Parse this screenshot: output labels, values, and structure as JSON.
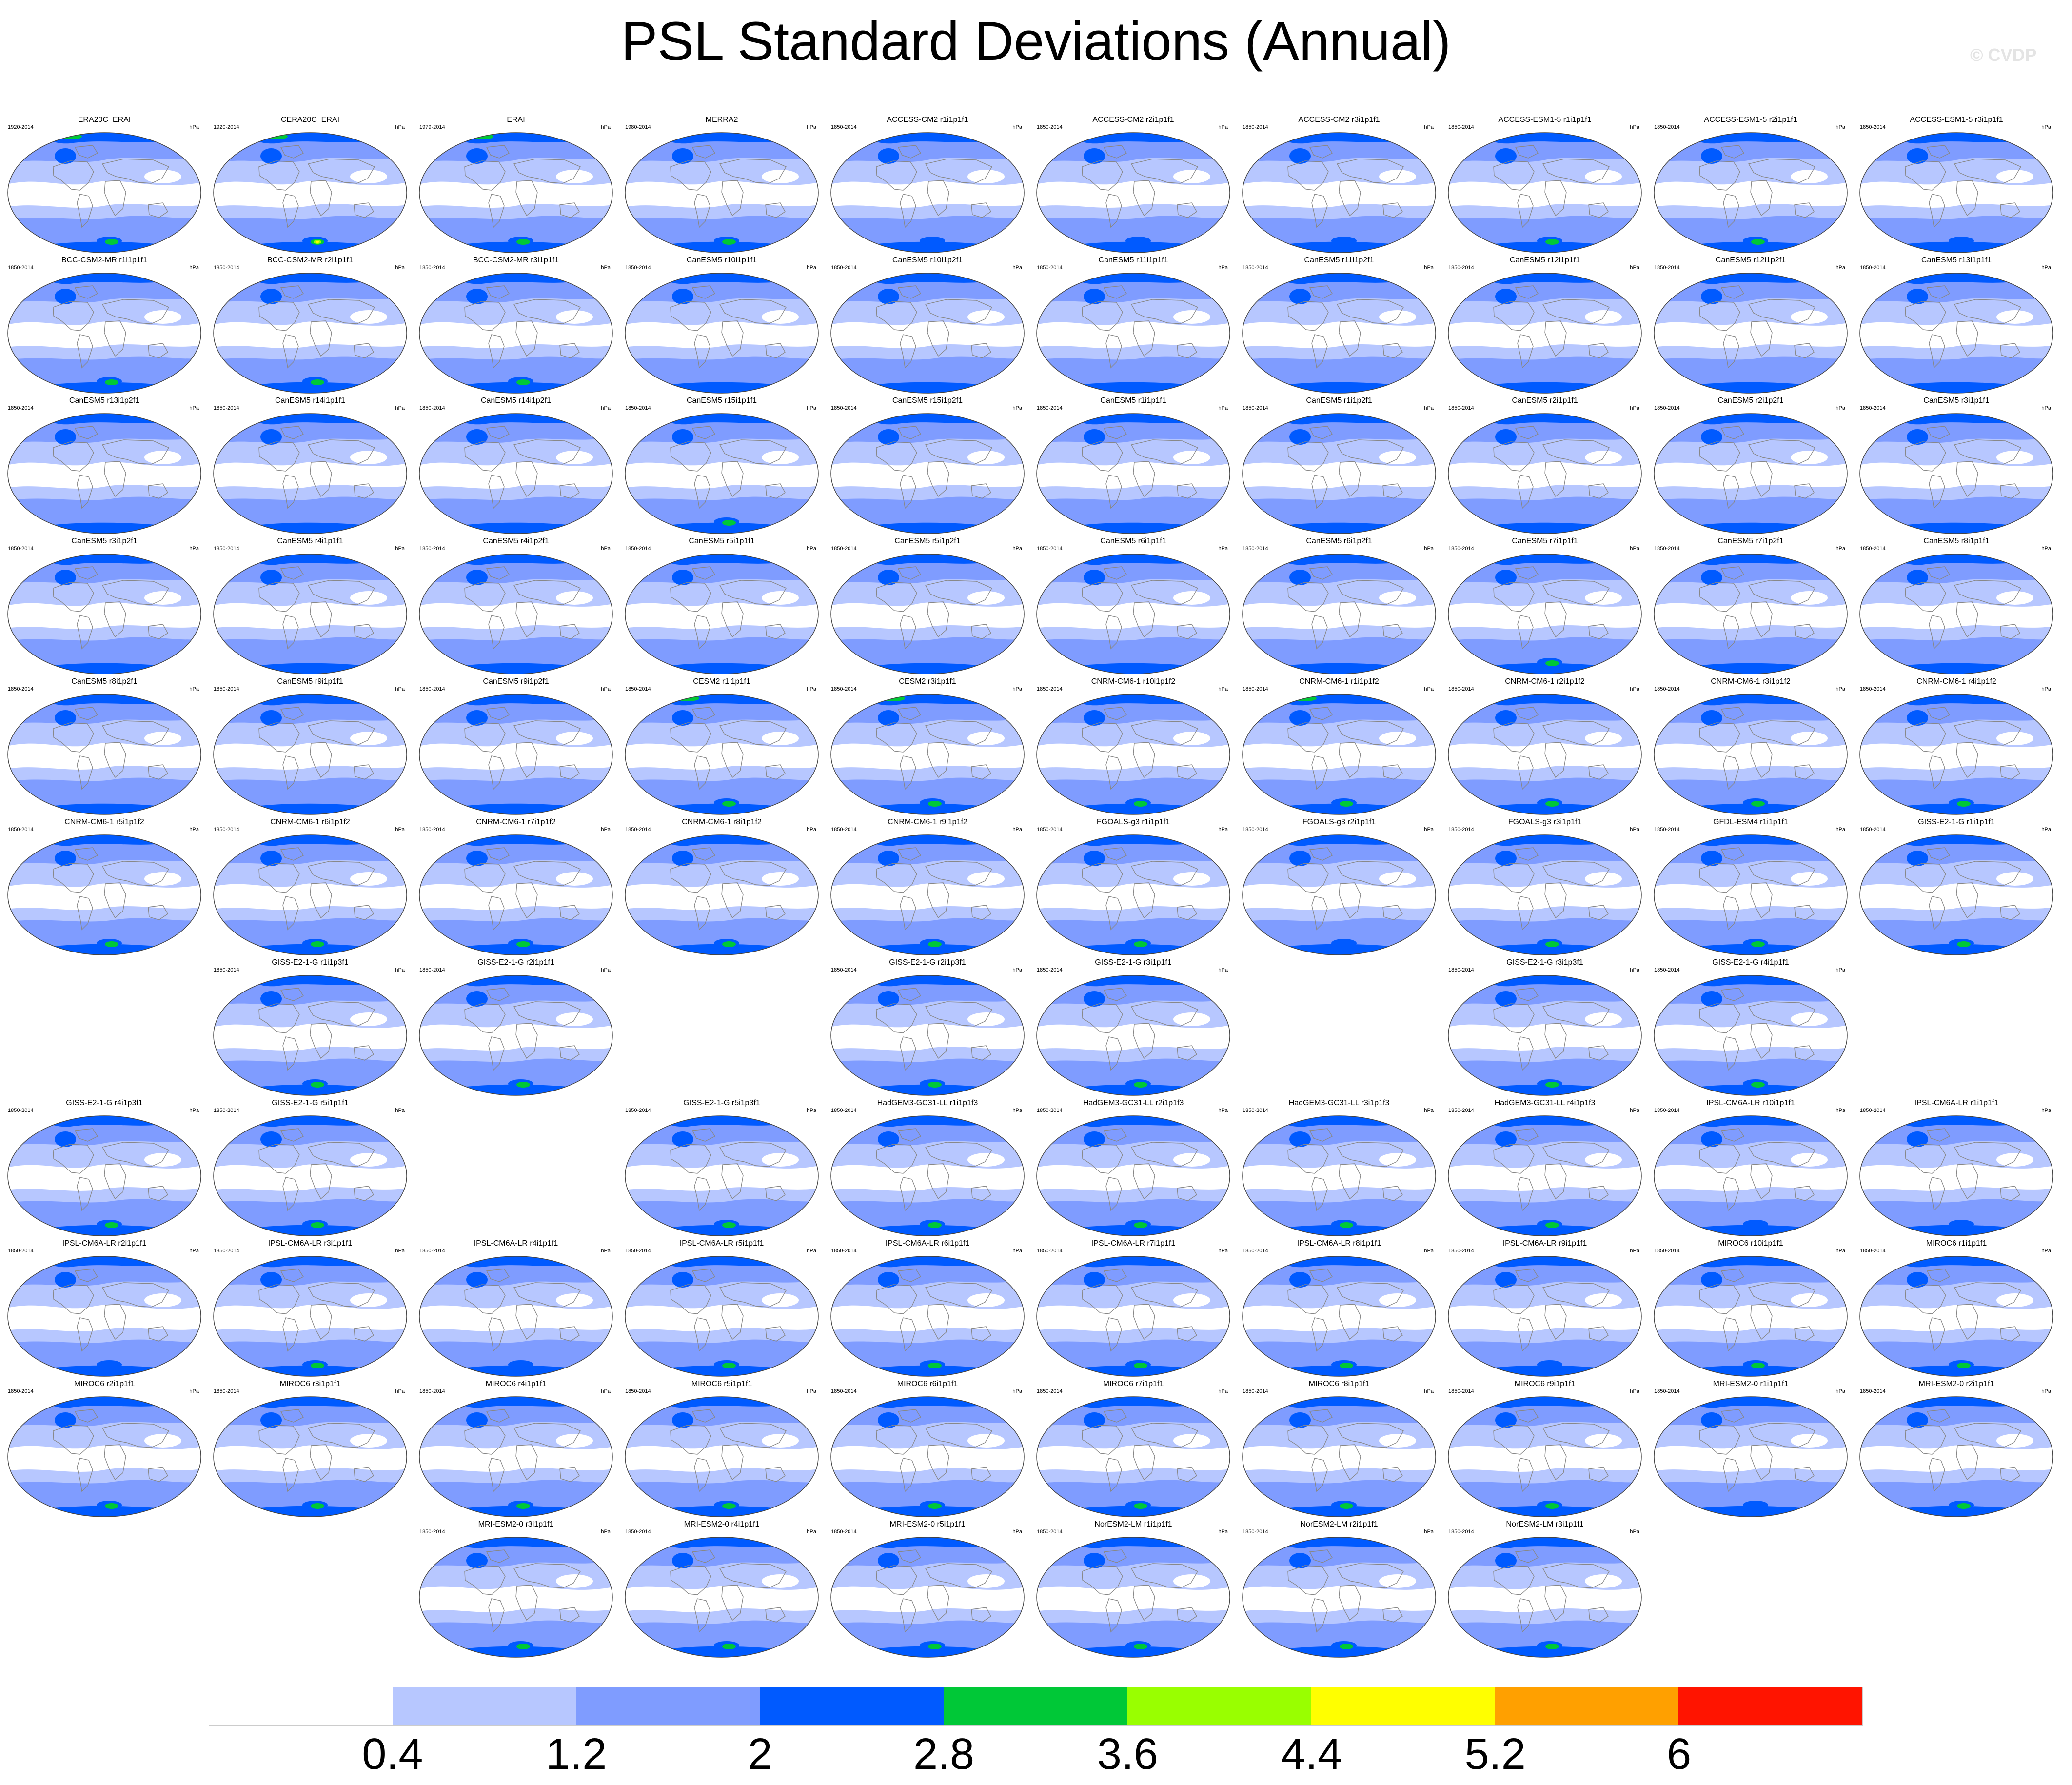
{
  "title": "PSL Standard Deviations (Annual)",
  "credit": "© CVDP",
  "units": "hPa",
  "colors": {
    "bins": [
      "#ffffff",
      "#b7c7ff",
      "#7f9cff",
      "#005aff",
      "#00c837",
      "#99ff00",
      "#ffff00",
      "#ffa000",
      "#ff1400"
    ],
    "land_outline": "#888888",
    "frame": "#444444"
  },
  "legend": {
    "labels": [
      "0.4",
      "1.2",
      "2",
      "2.8",
      "3.6",
      "4.4",
      "5.2",
      "6"
    ]
  },
  "panels": [
    {
      "title": "ERA20C_ERAI",
      "period": "1920-2014",
      "row": 0,
      "col": 0,
      "max": 3.4
    },
    {
      "title": "CERA20C_ERAI",
      "period": "1920-2014",
      "row": 0,
      "col": 1,
      "max": 4.8
    },
    {
      "title": "ERAI",
      "period": "1979-2014",
      "row": 0,
      "col": 2,
      "max": 3.2
    },
    {
      "title": "MERRA2",
      "period": "1980-2014",
      "row": 0,
      "col": 3,
      "max": 3.1
    },
    {
      "title": "ACCESS-CM2 r1i1p1f1",
      "period": "1850-2014",
      "row": 0,
      "col": 4,
      "max": 2.8
    },
    {
      "title": "ACCESS-CM2 r2i1p1f1",
      "period": "1850-2014",
      "row": 0,
      "col": 5,
      "max": 2.8
    },
    {
      "title": "ACCESS-CM2 r3i1p1f1",
      "period": "1850-2014",
      "row": 0,
      "col": 6,
      "max": 2.8
    },
    {
      "title": "ACCESS-ESM1-5 r1i1p1f1",
      "period": "1850-2014",
      "row": 0,
      "col": 7,
      "max": 2.9
    },
    {
      "title": "ACCESS-ESM1-5 r2i1p1f1",
      "period": "1850-2014",
      "row": 0,
      "col": 8,
      "max": 2.9
    },
    {
      "title": "ACCESS-ESM1-5 r3i1p1f1",
      "period": "1850-2014",
      "row": 0,
      "col": 9,
      "max": 2.8
    },
    {
      "title": "BCC-CSM2-MR r1i1p1f1",
      "period": "1850-2014",
      "row": 1,
      "col": 0,
      "max": 3.0
    },
    {
      "title": "BCC-CSM2-MR r2i1p1f1",
      "period": "1850-2014",
      "row": 1,
      "col": 1,
      "max": 3.0
    },
    {
      "title": "BCC-CSM2-MR r3i1p1f1",
      "period": "1850-2014",
      "row": 1,
      "col": 2,
      "max": 3.0
    },
    {
      "title": "CanESM5 r10i1p1f1",
      "period": "1850-2014",
      "row": 1,
      "col": 3,
      "max": 2.7
    },
    {
      "title": "CanESM5 r10i1p2f1",
      "period": "1850-2014",
      "row": 1,
      "col": 4,
      "max": 2.7
    },
    {
      "title": "CanESM5 r11i1p1f1",
      "period": "1850-2014",
      "row": 1,
      "col": 5,
      "max": 2.7
    },
    {
      "title": "CanESM5 r11i1p2f1",
      "period": "1850-2014",
      "row": 1,
      "col": 6,
      "max": 2.7
    },
    {
      "title": "CanESM5 r12i1p1f1",
      "period": "1850-2014",
      "row": 1,
      "col": 7,
      "max": 2.7
    },
    {
      "title": "CanESM5 r12i1p2f1",
      "period": "1850-2014",
      "row": 1,
      "col": 8,
      "max": 2.7
    },
    {
      "title": "CanESM5 r13i1p1f1",
      "period": "1850-2014",
      "row": 1,
      "col": 9,
      "max": 2.7
    },
    {
      "title": "CanESM5 r13i1p2f1",
      "period": "1850-2014",
      "row": 2,
      "col": 0,
      "max": 2.7
    },
    {
      "title": "CanESM5 r14i1p1f1",
      "period": "1850-2014",
      "row": 2,
      "col": 1,
      "max": 2.7
    },
    {
      "title": "CanESM5 r14i1p2f1",
      "period": "1850-2014",
      "row": 2,
      "col": 2,
      "max": 2.7
    },
    {
      "title": "CanESM5 r15i1p1f1",
      "period": "1850-2014",
      "row": 2,
      "col": 3,
      "max": 3.0
    },
    {
      "title": "CanESM5 r15i1p2f1",
      "period": "1850-2014",
      "row": 2,
      "col": 4,
      "max": 2.7
    },
    {
      "title": "CanESM5 r1i1p1f1",
      "period": "1850-2014",
      "row": 2,
      "col": 5,
      "max": 2.7
    },
    {
      "title": "CanESM5 r1i1p2f1",
      "period": "1850-2014",
      "row": 2,
      "col": 6,
      "max": 2.7
    },
    {
      "title": "CanESM5 r2i1p1f1",
      "period": "1850-2014",
      "row": 2,
      "col": 7,
      "max": 2.7
    },
    {
      "title": "CanESM5 r2i1p2f1",
      "period": "1850-2014",
      "row": 2,
      "col": 8,
      "max": 2.7
    },
    {
      "title": "CanESM5 r3i1p1f1",
      "period": "1850-2014",
      "row": 2,
      "col": 9,
      "max": 2.7
    },
    {
      "title": "CanESM5 r3i1p2f1",
      "period": "1850-2014",
      "row": 3,
      "col": 0,
      "max": 2.7
    },
    {
      "title": "CanESM5 r4i1p1f1",
      "period": "1850-2014",
      "row": 3,
      "col": 1,
      "max": 2.7
    },
    {
      "title": "CanESM5 r4i1p2f1",
      "period": "1850-2014",
      "row": 3,
      "col": 2,
      "max": 2.7
    },
    {
      "title": "CanESM5 r5i1p1f1",
      "period": "1850-2014",
      "row": 3,
      "col": 3,
      "max": 2.7
    },
    {
      "title": "CanESM5 r5i1p2f1",
      "period": "1850-2014",
      "row": 3,
      "col": 4,
      "max": 2.7
    },
    {
      "title": "CanESM5 r6i1p1f1",
      "period": "1850-2014",
      "row": 3,
      "col": 5,
      "max": 2.7
    },
    {
      "title": "CanESM5 r6i1p2f1",
      "period": "1850-2014",
      "row": 3,
      "col": 6,
      "max": 2.7
    },
    {
      "title": "CanESM5 r7i1p1f1",
      "period": "1850-2014",
      "row": 3,
      "col": 7,
      "max": 2.9
    },
    {
      "title": "CanESM5 r7i1p2f1",
      "period": "1850-2014",
      "row": 3,
      "col": 8,
      "max": 2.7
    },
    {
      "title": "CanESM5 r8i1p1f1",
      "period": "1850-2014",
      "row": 3,
      "col": 9,
      "max": 2.7
    },
    {
      "title": "CanESM5 r8i1p2f1",
      "period": "1850-2014",
      "row": 4,
      "col": 0,
      "max": 2.7
    },
    {
      "title": "CanESM5 r9i1p1f1",
      "period": "1850-2014",
      "row": 4,
      "col": 1,
      "max": 2.7
    },
    {
      "title": "CanESM5 r9i1p2f1",
      "period": "1850-2014",
      "row": 4,
      "col": 2,
      "max": 2.7
    },
    {
      "title": "CESM2 r1i1p1f1",
      "period": "1850-2014",
      "row": 4,
      "col": 3,
      "max": 3.2
    },
    {
      "title": "CESM2 r3i1p1f1",
      "period": "1850-2014",
      "row": 4,
      "col": 4,
      "max": 3.2
    },
    {
      "title": "CNRM-CM6-1 r10i1p1f2",
      "period": "1850-2014",
      "row": 4,
      "col": 5,
      "max": 3.0
    },
    {
      "title": "CNRM-CM6-1 r1i1p1f2",
      "period": "1850-2014",
      "row": 4,
      "col": 6,
      "max": 3.2
    },
    {
      "title": "CNRM-CM6-1 r2i1p1f2",
      "period": "1850-2014",
      "row": 4,
      "col": 7,
      "max": 3.0
    },
    {
      "title": "CNRM-CM6-1 r3i1p1f2",
      "period": "1850-2014",
      "row": 4,
      "col": 8,
      "max": 3.0
    },
    {
      "title": "CNRM-CM6-1 r4i1p1f2",
      "period": "1850-2014",
      "row": 4,
      "col": 9,
      "max": 3.0
    },
    {
      "title": "CNRM-CM6-1 r5i1p1f2",
      "period": "1850-2014",
      "row": 5,
      "col": 0,
      "max": 3.0
    },
    {
      "title": "CNRM-CM6-1 r6i1p1f2",
      "period": "1850-2014",
      "row": 5,
      "col": 1,
      "max": 3.0
    },
    {
      "title": "CNRM-CM6-1 r7i1p1f2",
      "period": "1850-2014",
      "row": 5,
      "col": 2,
      "max": 3.0
    },
    {
      "title": "CNRM-CM6-1 r8i1p1f2",
      "period": "1850-2014",
      "row": 5,
      "col": 3,
      "max": 3.0
    },
    {
      "title": "CNRM-CM6-1 r9i1p1f2",
      "period": "1850-2014",
      "row": 5,
      "col": 4,
      "max": 3.0
    },
    {
      "title": "FGOALS-g3 r1i1p1f1",
      "period": "1850-2014",
      "row": 5,
      "col": 5,
      "max": 3.0
    },
    {
      "title": "FGOALS-g3 r2i1p1f1",
      "period": "1850-2014",
      "row": 5,
      "col": 6,
      "max": 2.8
    },
    {
      "title": "FGOALS-g3 r3i1p1f1",
      "period": "1850-2014",
      "row": 5,
      "col": 7,
      "max": 2.9
    },
    {
      "title": "GFDL-ESM4 r1i1p1f1",
      "period": "1850-2014",
      "row": 5,
      "col": 8,
      "max": 2.9
    },
    {
      "title": "GISS-E2-1-G r1i1p1f1",
      "period": "1850-2014",
      "row": 5,
      "col": 9,
      "max": 2.9
    },
    {
      "title": "GISS-E2-1-G r1i1p3f1",
      "period": "1850-2014",
      "row": 6,
      "col": 1,
      "max": 3.0
    },
    {
      "title": "GISS-E2-1-G r2i1p1f1",
      "period": "1850-2014",
      "row": 6,
      "col": 2,
      "max": 3.0
    },
    {
      "title": "GISS-E2-1-G r2i1p3f1",
      "period": "1850-2014",
      "row": 6,
      "col": 4,
      "max": 3.0
    },
    {
      "title": "GISS-E2-1-G r3i1p1f1",
      "period": "1850-2014",
      "row": 6,
      "col": 5,
      "max": 3.0
    },
    {
      "title": "GISS-E2-1-G r3i1p3f1",
      "period": "1850-2014",
      "row": 6,
      "col": 7,
      "max": 3.0
    },
    {
      "title": "GISS-E2-1-G r4i1p1f1",
      "period": "1850-2014",
      "row": 6,
      "col": 8,
      "max": 3.0
    },
    {
      "title": "GISS-E2-1-G r4i1p3f1",
      "period": "1850-2014",
      "row": 7,
      "col": 0,
      "max": 3.0
    },
    {
      "title": "GISS-E2-1-G r5i1p1f1",
      "period": "1850-2014",
      "row": 7,
      "col": 1,
      "max": 3.0
    },
    {
      "title": "GISS-E2-1-G r5i1p3f1",
      "period": "1850-2014",
      "row": 7,
      "col": 3,
      "max": 3.0
    },
    {
      "title": "HadGEM3-GC31-LL r1i1p1f3",
      "period": "1850-2014",
      "row": 7,
      "col": 4,
      "max": 2.9
    },
    {
      "title": "HadGEM3-GC31-LL r2i1p1f3",
      "period": "1850-2014",
      "row": 7,
      "col": 5,
      "max": 2.9
    },
    {
      "title": "HadGEM3-GC31-LL r3i1p1f3",
      "period": "1850-2014",
      "row": 7,
      "col": 6,
      "max": 2.9
    },
    {
      "title": "HadGEM3-GC31-LL r4i1p1f3",
      "period": "1850-2014",
      "row": 7,
      "col": 7,
      "max": 2.9
    },
    {
      "title": "IPSL-CM6A-LR r10i1p1f1",
      "period": "1850-2014",
      "row": 7,
      "col": 8,
      "max": 2.8
    },
    {
      "title": "IPSL-CM6A-LR r1i1p1f1",
      "period": "1850-2014",
      "row": 7,
      "col": 9,
      "max": 2.8
    },
    {
      "title": "IPSL-CM6A-LR r2i1p1f1",
      "period": "1850-2014",
      "row": 8,
      "col": 0,
      "max": 2.8
    },
    {
      "title": "IPSL-CM6A-LR r3i1p1f1",
      "period": "1850-2014",
      "row": 8,
      "col": 1,
      "max": 2.9
    },
    {
      "title": "IPSL-CM6A-LR r4i1p1f1",
      "period": "1850-2014",
      "row": 8,
      "col": 2,
      "max": 2.8
    },
    {
      "title": "IPSL-CM6A-LR r5i1p1f1",
      "period": "1850-2014",
      "row": 8,
      "col": 3,
      "max": 2.9
    },
    {
      "title": "IPSL-CM6A-LR r6i1p1f1",
      "period": "1850-2014",
      "row": 8,
      "col": 4,
      "max": 2.9
    },
    {
      "title": "IPSL-CM6A-LR r7i1p1f1",
      "period": "1850-2014",
      "row": 8,
      "col": 5,
      "max": 2.9
    },
    {
      "title": "IPSL-CM6A-LR r8i1p1f1",
      "period": "1850-2014",
      "row": 8,
      "col": 6,
      "max": 2.9
    },
    {
      "title": "IPSL-CM6A-LR r9i1p1f1",
      "period": "1850-2014",
      "row": 8,
      "col": 7,
      "max": 2.8
    },
    {
      "title": "MIROC6 r10i1p1f1",
      "period": "1850-2014",
      "row": 8,
      "col": 8,
      "max": 2.9
    },
    {
      "title": "MIROC6 r1i1p1f1",
      "period": "1850-2014",
      "row": 8,
      "col": 9,
      "max": 2.9
    },
    {
      "title": "MIROC6 r2i1p1f1",
      "period": "1850-2014",
      "row": 9,
      "col": 0,
      "max": 2.9
    },
    {
      "title": "MIROC6 r3i1p1f1",
      "period": "1850-2014",
      "row": 9,
      "col": 1,
      "max": 2.9
    },
    {
      "title": "MIROC6 r4i1p1f1",
      "period": "1850-2014",
      "row": 9,
      "col": 2,
      "max": 2.9
    },
    {
      "title": "MIROC6 r5i1p1f1",
      "period": "1850-2014",
      "row": 9,
      "col": 3,
      "max": 2.9
    },
    {
      "title": "MIROC6 r6i1p1f1",
      "period": "1850-2014",
      "row": 9,
      "col": 4,
      "max": 2.9
    },
    {
      "title": "MIROC6 r7i1p1f1",
      "period": "1850-2014",
      "row": 9,
      "col": 5,
      "max": 2.9
    },
    {
      "title": "MIROC6 r8i1p1f1",
      "period": "1850-2014",
      "row": 9,
      "col": 6,
      "max": 2.9
    },
    {
      "title": "MIROC6 r9i1p1f1",
      "period": "1850-2014",
      "row": 9,
      "col": 7,
      "max": 2.9
    },
    {
      "title": "MRI-ESM2-0 r1i1p1f1",
      "period": "1850-2014",
      "row": 9,
      "col": 8,
      "max": 2.8
    },
    {
      "title": "MRI-ESM2-0 r2i1p1f1",
      "period": "1850-2014",
      "row": 9,
      "col": 9,
      "max": 2.9
    },
    {
      "title": "MRI-ESM2-0 r3i1p1f1",
      "period": "1850-2014",
      "row": 10,
      "col": 2,
      "max": 2.9
    },
    {
      "title": "MRI-ESM2-0 r4i1p1f1",
      "period": "1850-2014",
      "row": 10,
      "col": 3,
      "max": 2.9
    },
    {
      "title": "MRI-ESM2-0 r5i1p1f1",
      "period": "1850-2014",
      "row": 10,
      "col": 4,
      "max": 2.9
    },
    {
      "title": "NorESM2-LM r1i1p1f1",
      "period": "1850-2014",
      "row": 10,
      "col": 5,
      "max": 2.9
    },
    {
      "title": "NorESM2-LM r2i1p1f1",
      "period": "1850-2014",
      "row": 10,
      "col": 6,
      "max": 2.9
    },
    {
      "title": "NorESM2-LM r3i1p1f1",
      "period": "1850-2014",
      "row": 10,
      "col": 7,
      "max": 2.9
    }
  ]
}
